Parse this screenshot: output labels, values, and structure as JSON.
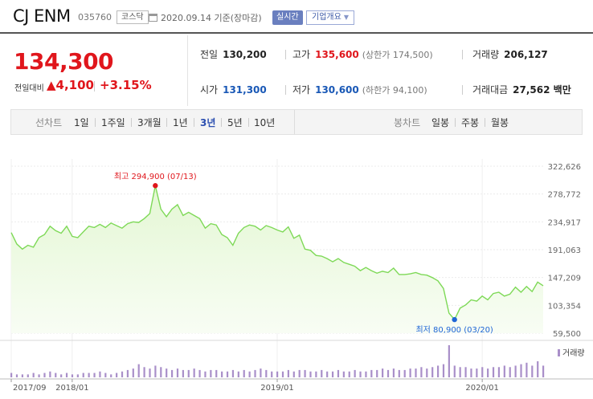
{
  "header": {
    "company": "CJ ENM",
    "code": "035760",
    "market": "코스닥",
    "date": "2020.09.14 기준(장마감)",
    "realtime_label": "실시간",
    "overview_label": "기업개요"
  },
  "price": {
    "current": "134,300",
    "change_label": "전일대비",
    "change": "4,100",
    "change_pct": "+3.15%"
  },
  "stats": {
    "prev_close_label": "전일",
    "prev_close": "130,200",
    "high_label": "고가",
    "high": "135,600",
    "upper_limit": "(상한가 174,500)",
    "volume_label": "거래량",
    "volume": "206,127",
    "open_label": "시가",
    "open": "131,300",
    "low_label": "저가",
    "low": "130,600",
    "lower_limit": "(하한가 94,100)",
    "trade_value_label": "거래대금",
    "trade_value": "27,562 백만"
  },
  "tabs": {
    "line_chart_label": "선차트",
    "periods": [
      "1일",
      "1주일",
      "3개월",
      "1년",
      "3년",
      "5년",
      "10년"
    ],
    "active_period": "3년",
    "candle_label": "봉차트",
    "candles": [
      "일봉",
      "주봉",
      "월봉"
    ]
  },
  "colors": {
    "up": "#e0161c",
    "down": "#1958b6",
    "line": "#7ed957",
    "fill_top": "#e4f7d4",
    "volume": "#a98fc9",
    "active_tab": "#2c4fb0"
  },
  "chart_data": {
    "type": "area",
    "x_tick_labels": [
      "2017/09",
      "2018/01",
      "2019/01",
      "2020/01"
    ],
    "y_tick_labels": [
      "322,626",
      "278,772",
      "234,917",
      "191,063",
      "147,209",
      "103,354",
      "59,500"
    ],
    "ylim": [
      59500,
      322626
    ],
    "grid": true,
    "max_annotation": "최고 294,900 (07/13)",
    "min_annotation": "최저 80,900 (03/20)",
    "volume_legend": "거래량",
    "series": [
      {
        "values": [
          218000,
          200000,
          192000,
          198000,
          195000,
          210000,
          215000,
          228000,
          221000,
          217000,
          228000,
          212000,
          210000,
          219000,
          228000,
          226000,
          231000,
          226000,
          233000,
          229000,
          225000,
          232000,
          235000,
          234000,
          240000,
          248000,
          292000,
          255000,
          243000,
          255000,
          262000,
          245000,
          250000,
          245000,
          240000,
          225000,
          232000,
          230000,
          215000,
          210000,
          198000,
          217000,
          226000,
          230000,
          228000,
          222000,
          229000,
          226000,
          222000,
          219000,
          227000,
          209000,
          214000,
          192000,
          190000,
          182000,
          181000,
          177000,
          172000,
          177000,
          171000,
          168000,
          165000,
          158000,
          163000,
          158000,
          154000,
          157000,
          155000,
          162000,
          152000,
          152000,
          153000,
          155000,
          152000,
          151000,
          147000,
          142000,
          130000,
          91000,
          80900,
          99000,
          104000,
          112000,
          110000,
          118000,
          112000,
          122000,
          124000,
          118000,
          121000,
          132000,
          124000,
          133000,
          125000,
          140000,
          134300
        ]
      }
    ],
    "volume": [
      3,
      2,
      2,
      2,
      3,
      2,
      3,
      4,
      3,
      2,
      3,
      2,
      2,
      3,
      3,
      3,
      4,
      3,
      2,
      3,
      4,
      5,
      6,
      9,
      7,
      6,
      8,
      7,
      6,
      5,
      6,
      5,
      5,
      6,
      5,
      4,
      5,
      5,
      4,
      4,
      5,
      4,
      5,
      4,
      5,
      6,
      5,
      4,
      4,
      4,
      5,
      4,
      5,
      5,
      4,
      4,
      5,
      4,
      4,
      5,
      4,
      4,
      5,
      4,
      4,
      5,
      5,
      6,
      5,
      6,
      5,
      5,
      6,
      6,
      7,
      6,
      7,
      8,
      9,
      22,
      8,
      7,
      7,
      6,
      6,
      7,
      6,
      7,
      7,
      8,
      7,
      8,
      9,
      10,
      8,
      11,
      8
    ]
  }
}
